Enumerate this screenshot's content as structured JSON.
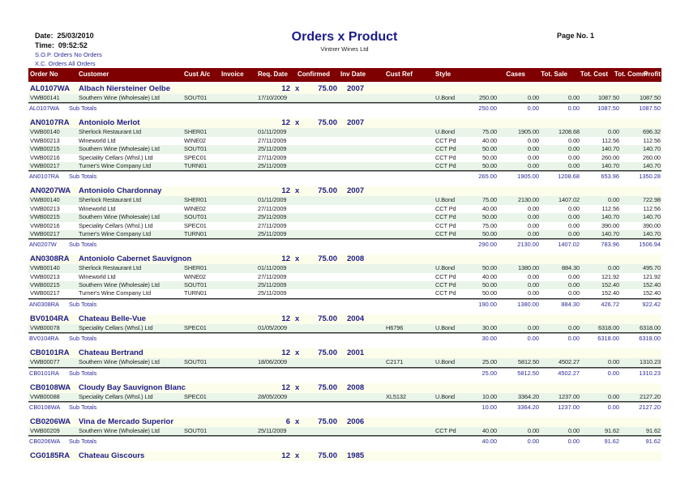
{
  "header": {
    "date_label": "Date:",
    "date": "25/03/2010",
    "time_label": "Time:",
    "time": "09:52:52",
    "title": "Orders x Product",
    "company": "Vintner Wines Ltd",
    "page_label": "Page No.",
    "page": "1",
    "filters": [
      "S.O.P. Orders No Orders",
      "X.C. Orders All Orders"
    ]
  },
  "columns": [
    "Order No",
    "Customer",
    "Cust A/c",
    "Invoice",
    "Req. Date",
    "Confirmed",
    "Inv Date",
    "Cust Ref",
    "Style",
    "Cases",
    "Tot. Sale",
    "Tot. Cost",
    "Tot. Comm",
    "Profit"
  ],
  "colors": {
    "header_bar": "#7f0000",
    "group_text": "#1c1c8a",
    "group_bg": "#fdfdec",
    "alt_row_bg": "#eaf5ea"
  },
  "subtotal_label": "Sub Totals",
  "groups": [
    {
      "code": "AL0107WA",
      "product": "Albach Niersteiner Oelbe",
      "qty": "12",
      "x": "x",
      "size": "75.00",
      "vintage": "2007",
      "details": [
        [
          "VWB00141",
          "Southern Wine (Wholesale) Ltd",
          "SOUT01",
          "17/10/2009",
          "",
          "U.Bond",
          "250.00",
          "0.00",
          "0.00",
          "1087.50",
          "1087.50"
        ]
      ],
      "subtotal": {
        "code": "AL0107WA",
        "values": [
          "250.00",
          "0.00",
          "0.00",
          "1087.50",
          "1087.50"
        ]
      }
    },
    {
      "code": "AN0107RA",
      "product": "Antoniolo Merlot",
      "qty": "12",
      "x": "x",
      "size": "75.00",
      "vintage": "2007",
      "details": [
        [
          "VWB00140",
          "Sherlock Restaurant Ltd",
          "SHER01",
          "01/11/2009",
          "",
          "U.Bond",
          "75.00",
          "1905.00",
          "1208.68",
          "0.00",
          "696.32"
        ],
        [
          "VWB00213",
          "Wineworld Ltd",
          "WINE02",
          "27/11/2009",
          "",
          "CCT Pd",
          "40.00",
          "0.00",
          "0.00",
          "112.56",
          "112.56"
        ],
        [
          "VWB00215",
          "Southern Wine (Wholesale) Ltd",
          "SOUT01",
          "25/11/2009",
          "",
          "CCT Pd",
          "50.00",
          "0.00",
          "0.00",
          "140.70",
          "140.70"
        ],
        [
          "VWB00216",
          "Speciality Cellars (Whsl.) Ltd",
          "SPEC01",
          "27/11/2009",
          "",
          "CCT Pd",
          "50.00",
          "0.00",
          "0.00",
          "260.00",
          "260.00"
        ],
        [
          "VWB00217",
          "Turner's Wine Company Ltd",
          "TURN01",
          "25/11/2009",
          "",
          "CCT Pd",
          "50.00",
          "0.00",
          "0.00",
          "140.70",
          "140.70"
        ]
      ],
      "subtotal": {
        "code": "AN0107RA",
        "values": [
          "265.00",
          "1905.00",
          "1208.68",
          "653.96",
          "1350.28"
        ]
      }
    },
    {
      "code": "AN0207WA",
      "product": "Antoniolo Chardonnay",
      "qty": "12",
      "x": "x",
      "size": "75.00",
      "vintage": "2007",
      "details": [
        [
          "VWB00140",
          "Sherlock Restaurant Ltd",
          "SHER01",
          "01/11/2009",
          "",
          "U.Bond",
          "75.00",
          "2130.00",
          "1407.02",
          "0.00",
          "722.98"
        ],
        [
          "VWB00213",
          "Wineworld Ltd",
          "WINE02",
          "27/11/2009",
          "",
          "CCT Pd",
          "40.00",
          "0.00",
          "0.00",
          "112.56",
          "112.56"
        ],
        [
          "VWB00215",
          "Southern Wine (Wholesale) Ltd",
          "SOUT01",
          "25/11/2009",
          "",
          "CCT Pd",
          "50.00",
          "0.00",
          "0.00",
          "140.70",
          "140.70"
        ],
        [
          "VWB00216",
          "Speciality Cellars (Whsl.) Ltd",
          "SPEC01",
          "27/11/2009",
          "",
          "CCT Pd",
          "75.00",
          "0.00",
          "0.00",
          "390.00",
          "390.00"
        ],
        [
          "VWB00217",
          "Turner's Wine Company Ltd",
          "TURN01",
          "25/11/2009",
          "",
          "CCT Pd",
          "50.00",
          "0.00",
          "0.00",
          "140.70",
          "140.70"
        ]
      ],
      "subtotal": {
        "code": "AN0207W",
        "values": [
          "290.00",
          "2130.00",
          "1407.02",
          "783.96",
          "1506.94"
        ]
      }
    },
    {
      "code": "AN0308RA",
      "product": "Antoniolo Cabernet Sauvignon",
      "qty": "12",
      "x": "x",
      "size": "75.00",
      "vintage": "2008",
      "details": [
        [
          "VWB00140",
          "Sherlock Restaurant Ltd",
          "SHER01",
          "01/11/2009",
          "",
          "U.Bond",
          "50.00",
          "1380.00",
          "884.30",
          "0.00",
          "495.70"
        ],
        [
          "VWB00213",
          "Wineworld Ltd",
          "WINE02",
          "27/11/2009",
          "",
          "CCT Pd",
          "40.00",
          "0.00",
          "0.00",
          "121.92",
          "121.92"
        ],
        [
          "VWB00215",
          "Southern Wine (Wholesale) Ltd",
          "SOUT01",
          "25/11/2009",
          "",
          "CCT Pd",
          "50.00",
          "0.00",
          "0.00",
          "152.40",
          "152.40"
        ],
        [
          "VWB00217",
          "Turner's Wine Company Ltd",
          "TURN01",
          "25/11/2009",
          "",
          "CCT Pd",
          "50.00",
          "0.00",
          "0.00",
          "152.40",
          "152.40"
        ]
      ],
      "subtotal": {
        "code": "AN0308RA",
        "values": [
          "190.00",
          "1380.00",
          "884.30",
          "426.72",
          "922.42"
        ]
      }
    },
    {
      "code": "BV0104RA",
      "product": "Chateau Belle-Vue",
      "qty": "12",
      "x": "x",
      "size": "75.00",
      "vintage": "2004",
      "details": [
        [
          "VWB00078",
          "Speciality Cellars (Whsl.) Ltd",
          "SPEC01",
          "01/05/2009",
          "H6796",
          "U.Bond",
          "30.00",
          "0.00",
          "0.00",
          "6318.00",
          "6318.00"
        ]
      ],
      "subtotal": {
        "code": "BV0104RA",
        "values": [
          "30.00",
          "0.00",
          "0.00",
          "6318.00",
          "6318.00"
        ]
      }
    },
    {
      "code": "CB0101RA",
      "product": "Chateau Bertrand",
      "qty": "12",
      "x": "x",
      "size": "75.00",
      "vintage": "2001",
      "details": [
        [
          "VWB00077",
          "Southern Wine (Wholesale) Ltd",
          "SOUT01",
          "18/06/2009",
          "C2171",
          "U.Bond",
          "25.00",
          "5812.50",
          "4502.27",
          "0.00",
          "1310.23"
        ]
      ],
      "subtotal": {
        "code": "CB0101RA",
        "values": [
          "25.00",
          "5812.50",
          "4502.27",
          "0.00",
          "1310.23"
        ]
      }
    },
    {
      "code": "CB0108WA",
      "product": "Cloudy Bay Sauvignon Blanc",
      "qty": "12",
      "x": "x",
      "size": "75.00",
      "vintage": "2008",
      "details": [
        [
          "VWB00088",
          "Speciality Cellars (Whsl.) Ltd",
          "SPEC01",
          "28/05/2009",
          "XL5132",
          "U.Bond",
          "10.00",
          "3364.20",
          "1237.00",
          "0.00",
          "2127.20"
        ]
      ],
      "subtotal": {
        "code": "CB0108WA",
        "values": [
          "10.00",
          "3364.20",
          "1237.00",
          "0.00",
          "2127.20"
        ]
      }
    },
    {
      "code": "CB0206WA",
      "product": "Vina de Mercado Superior",
      "qty": "6",
      "x": "x",
      "size": "75.00",
      "vintage": "2006",
      "details": [
        [
          "VWB00209",
          "Southern Wine (Wholesale) Ltd",
          "SOUT01",
          "25/11/2009",
          "",
          "CCT Pd",
          "40.00",
          "0.00",
          "0.00",
          "91.62",
          "91.62"
        ]
      ],
      "subtotal": {
        "code": "CB0206WA",
        "values": [
          "40.00",
          "0.00",
          "0.00",
          "91.62",
          "91.62"
        ]
      }
    },
    {
      "code": "CG0185RA",
      "product": "Chateau Giscours",
      "qty": "12",
      "x": "x",
      "size": "75.00",
      "vintage": "1985",
      "details": [],
      "subtotal": null
    }
  ]
}
